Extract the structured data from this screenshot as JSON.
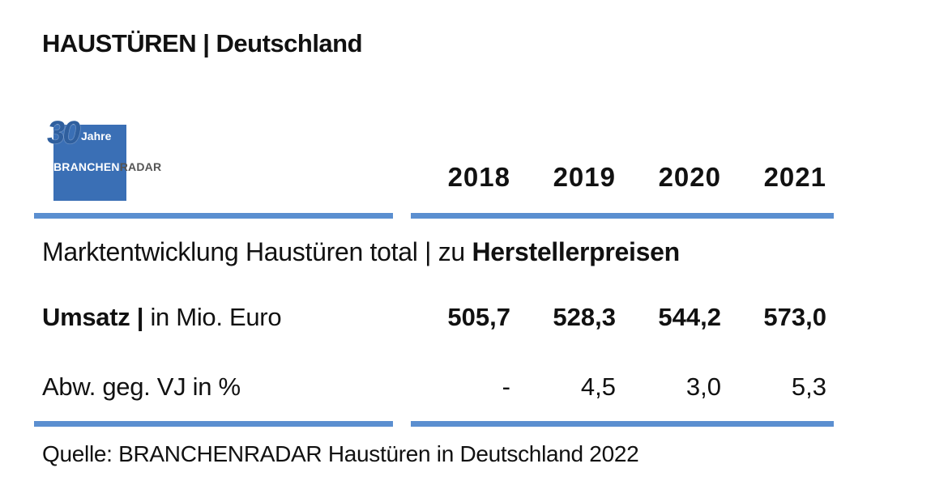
{
  "title": "HAUSTÜREN | Deutschland",
  "logo": {
    "number": "30",
    "jahre": "Jahre",
    "brand_a": "BRANCHEN",
    "brand_b": "RADAR"
  },
  "subtitle": {
    "prefix": "Marktentwicklung Haustüren total | zu ",
    "emphasis": "Herstellerpreisen"
  },
  "rows": {
    "umsatz_label_bold": "Umsatz |",
    "umsatz_label_rest": " in Mio. Euro",
    "abw_label": "Abw. geg. VJ in %"
  },
  "source": "Quelle: BRANCHENRADAR Haustüren in Deutschland 2022",
  "chart_data": {
    "type": "table",
    "title": "HAUSTÜREN | Deutschland",
    "columns": [
      "2018",
      "2019",
      "2020",
      "2021"
    ],
    "rows": [
      {
        "label": "Umsatz | in Mio. Euro",
        "values": [
          "505,7",
          "528,3",
          "544,2",
          "573,0"
        ],
        "numeric": [
          505.7,
          528.3,
          544.2,
          573.0
        ]
      },
      {
        "label": "Abw. geg. VJ in %",
        "values": [
          "-",
          "4,5",
          "3,0",
          "5,3"
        ],
        "numeric": [
          null,
          4.5,
          3.0,
          5.3
        ]
      }
    ],
    "source": "Quelle: BRANCHENRADAR Haustüren in Deutschland 2022"
  },
  "colors": {
    "rule": "#5b8fd0",
    "logo_blue": "#3a6fb5",
    "text": "#111111"
  }
}
